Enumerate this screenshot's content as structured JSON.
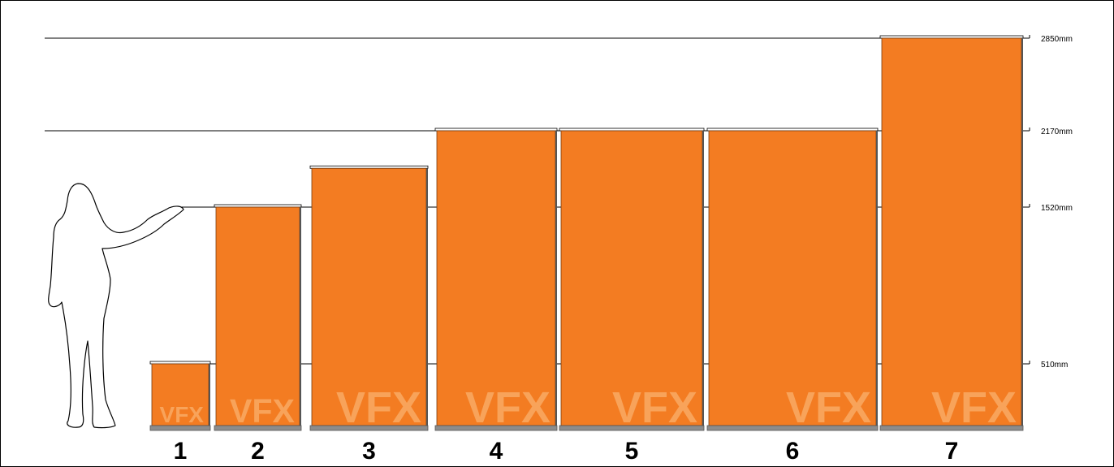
{
  "colors": {
    "banner": "#f37c22",
    "banner_edge": "#7a3d0e",
    "watermark": "#f8a35a",
    "base": "#8c8c8c",
    "line": "#000000"
  },
  "height_markers": [
    {
      "label": "2850mm",
      "value_mm": 2850
    },
    {
      "label": "2170mm",
      "value_mm": 2170
    },
    {
      "label": "1520mm",
      "value_mm": 1520
    },
    {
      "label": "510mm",
      "value_mm": 510
    }
  ],
  "banner_stands": [
    {
      "number": "1",
      "height_mm": 510,
      "watermark": "VFX"
    },
    {
      "number": "2",
      "height_mm": 1520,
      "watermark": "VFX"
    },
    {
      "number": "3",
      "height_mm": 1850,
      "watermark": "VFX"
    },
    {
      "number": "4",
      "height_mm": 2170,
      "watermark": "VFX"
    },
    {
      "number": "5",
      "height_mm": 2170,
      "watermark": "VFX"
    },
    {
      "number": "6",
      "height_mm": 2170,
      "watermark": "VFX"
    },
    {
      "number": "7",
      "height_mm": 2850,
      "watermark": "VFX"
    }
  ],
  "figure": {
    "icon": "person-silhouette-icon"
  }
}
